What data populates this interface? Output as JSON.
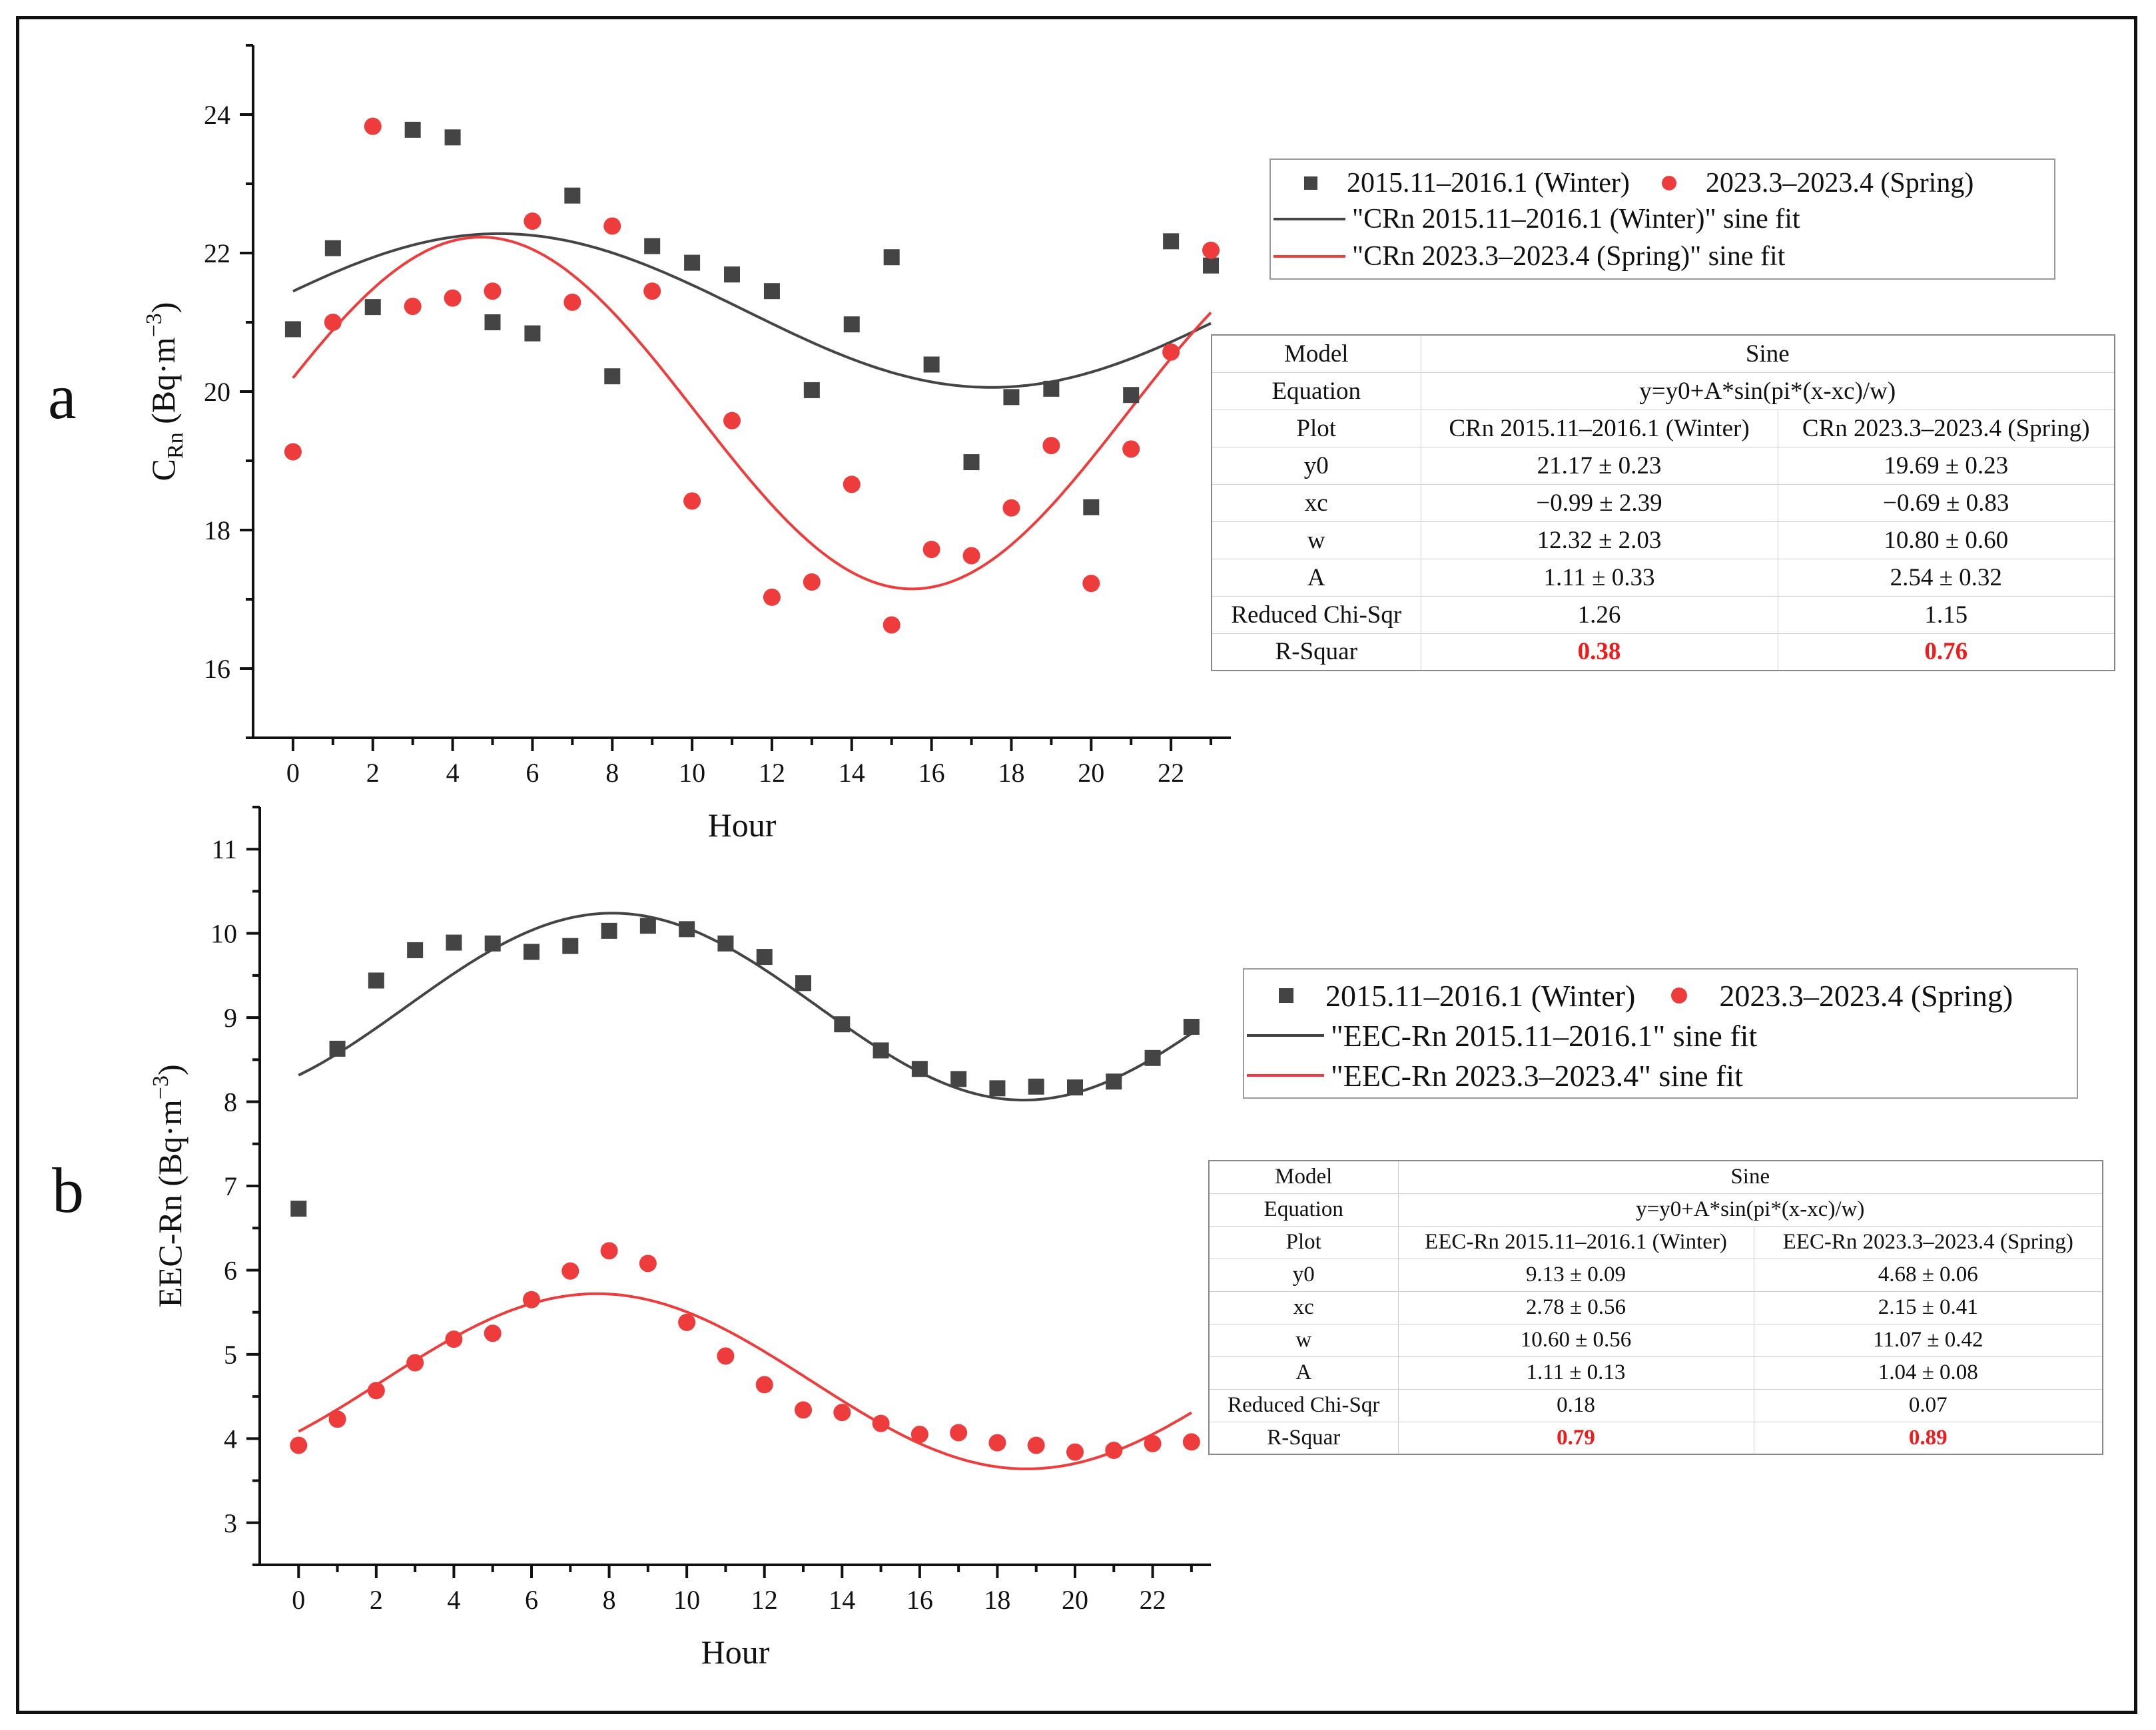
{
  "panels": [
    {
      "letter": "a",
      "xlabel": "Hour",
      "ylabel_main": "C",
      "ylabel_sub": "Rn",
      "ylabel_unit": " (Bq·m",
      "ylabel_exp": "−3",
      "ylabel_close": ")",
      "legend": {
        "winter_label": "2015.11–2016.1 (Winter)",
        "spring_label": "2023.3–2023.4 (Spring)",
        "winter_fit_label": "\"CRn 2015.11–2016.1 (Winter)\" sine fit",
        "spring_fit_label": "\"CRn 2023.3–2023.4 (Spring)\" sine fit"
      },
      "table": {
        "model_label": "Model",
        "model_value": "Sine",
        "equation_label": "Equation",
        "equation_value": "y=y0+A*sin(pi*(x-xc)/w)",
        "plot_label": "Plot",
        "plot_winter": "CRn 2015.11–2016.1 (Winter)",
        "plot_spring": "CRn 2023.3–2023.4 (Spring)",
        "rows": [
          {
            "label": "y0",
            "winter": "21.17 ± 0.23",
            "spring": "19.69 ± 0.23"
          },
          {
            "label": "xc",
            "winter": "−0.99 ± 2.39",
            "spring": "−0.69 ± 0.83"
          },
          {
            "label": "w",
            "winter": "12.32 ± 2.03",
            "spring": "10.80 ± 0.60"
          },
          {
            "label": "A",
            "winter": "1.11 ± 0.33",
            "spring": "2.54 ± 0.32"
          },
          {
            "label": "Reduced Chi-Sqr",
            "winter": "1.26",
            "spring": "1.15"
          }
        ],
        "r2_label": "R-Squar",
        "r2_winter": "0.38",
        "r2_spring": "0.76"
      }
    },
    {
      "letter": "b",
      "xlabel": "Hour",
      "ylabel_main": "EEC-Rn",
      "ylabel_sub": "",
      "ylabel_unit": " (Bq·m",
      "ylabel_exp": "−3",
      "ylabel_close": ")",
      "legend": {
        "winter_label": "2015.11–2016.1 (Winter)",
        "spring_label": "2023.3–2023.4 (Spring)",
        "winter_fit_label": "\"EEC-Rn 2015.11–2016.1\" sine fit",
        "spring_fit_label": "\"EEC-Rn 2023.3–2023.4\" sine fit"
      },
      "table": {
        "model_label": "Model",
        "model_value": "Sine",
        "equation_label": "Equation",
        "equation_value": "y=y0+A*sin(pi*(x-xc)/w)",
        "plot_label": "Plot",
        "plot_winter": "EEC-Rn 2015.11–2016.1 (Winter)",
        "plot_spring": "EEC-Rn 2023.3–2023.4 (Spring)",
        "rows": [
          {
            "label": "y0",
            "winter": "9.13 ± 0.09",
            "spring": "4.68 ± 0.06"
          },
          {
            "label": "xc",
            "winter": "2.78 ± 0.56",
            "spring": "2.15 ± 0.41"
          },
          {
            "label": "w",
            "winter": "10.60 ± 0.56",
            "spring": "11.07 ± 0.42"
          },
          {
            "label": "A",
            "winter": "1.11 ± 0.13",
            "spring": "1.04 ± 0.08"
          },
          {
            "label": "Reduced Chi-Sqr",
            "winter": "0.18",
            "spring": "0.07"
          }
        ],
        "r2_label": "R-Squar",
        "r2_winter": "0.79",
        "r2_spring": "0.89"
      }
    }
  ],
  "chart_data": [
    {
      "type": "scatter",
      "title": "",
      "xlabel": "Hour",
      "ylabel": "CRn (Bq·m−3)",
      "xlim": [
        -1,
        23.5
      ],
      "ylim": [
        15,
        25
      ],
      "xticks": [
        0,
        2,
        4,
        6,
        8,
        10,
        12,
        14,
        16,
        18,
        20,
        22
      ],
      "yticks": [
        16,
        18,
        20,
        22,
        24
      ],
      "series": [
        {
          "name": "2015.11–2016.1 (Winter)",
          "marker": "square",
          "color": "#444444",
          "x": [
            0,
            1,
            2,
            3,
            4,
            5,
            6,
            7,
            8,
            9,
            10,
            11,
            12,
            13,
            14,
            15,
            16,
            17,
            18,
            19,
            20,
            21,
            22,
            23
          ],
          "values": [
            20.9,
            22.07,
            21.22,
            23.78,
            23.67,
            21.0,
            20.84,
            22.83,
            20.22,
            22.1,
            21.86,
            21.69,
            21.45,
            20.02,
            20.97,
            21.94,
            20.39,
            18.98,
            19.92,
            20.04,
            18.33,
            19.95,
            22.17,
            21.82
          ]
        },
        {
          "name": "2023.3–2023.4 (Spring)",
          "marker": "circle",
          "color": "#ee3b3b",
          "x": [
            0,
            1,
            2,
            3,
            4,
            5,
            6,
            7,
            8,
            9,
            10,
            11,
            12,
            13,
            14,
            15,
            16,
            17,
            18,
            19,
            20,
            21,
            22,
            23
          ],
          "values": [
            19.13,
            21.0,
            23.83,
            21.23,
            21.35,
            21.45,
            22.46,
            21.29,
            22.39,
            21.45,
            18.42,
            19.58,
            17.03,
            17.25,
            18.66,
            16.63,
            17.72,
            17.63,
            18.32,
            19.22,
            17.23,
            19.17,
            20.57,
            22.04
          ]
        }
      ],
      "fits": [
        {
          "name": "\"CRn 2015.11–2016.1 (Winter)\" sine fit",
          "color": "#444444",
          "y0": 21.17,
          "xc": -0.99,
          "w": 12.32,
          "A": 1.11
        },
        {
          "name": "\"CRn 2023.3–2023.4 (Spring)\" sine fit",
          "color": "#ee3b3b",
          "y0": 19.69,
          "xc": -0.69,
          "w": 10.8,
          "A": 2.54
        }
      ],
      "legend_position": "top-right"
    },
    {
      "type": "scatter",
      "title": "",
      "xlabel": "Hour",
      "ylabel": "EEC-Rn (Bq·m−3)",
      "xlim": [
        -1,
        23.5
      ],
      "ylim": [
        2.5,
        11.5
      ],
      "xticks": [
        0,
        2,
        4,
        6,
        8,
        10,
        12,
        14,
        16,
        18,
        20,
        22
      ],
      "yticks": [
        3,
        4,
        5,
        6,
        7,
        8,
        9,
        10,
        11
      ],
      "series": [
        {
          "name": "2015.11–2016.1 (Winter)",
          "marker": "square",
          "color": "#444444",
          "x": [
            0,
            1,
            2,
            3,
            4,
            5,
            6,
            7,
            8,
            9,
            10,
            11,
            12,
            13,
            14,
            15,
            16,
            17,
            18,
            19,
            20,
            21,
            22,
            23
          ],
          "values": [
            6.73,
            8.63,
            9.44,
            9.8,
            9.89,
            9.88,
            9.78,
            9.85,
            10.03,
            10.09,
            10.05,
            9.88,
            9.72,
            9.41,
            8.92,
            8.61,
            8.39,
            8.27,
            8.16,
            8.18,
            8.17,
            8.24,
            8.52,
            8.89
          ]
        },
        {
          "name": "2023.3–2023.4 (Spring)",
          "marker": "circle",
          "color": "#ee3b3b",
          "x": [
            0,
            1,
            2,
            3,
            4,
            5,
            6,
            7,
            8,
            9,
            10,
            11,
            12,
            13,
            14,
            15,
            16,
            17,
            18,
            19,
            20,
            21,
            22,
            23
          ],
          "values": [
            3.92,
            4.23,
            4.57,
            4.9,
            5.18,
            5.25,
            5.65,
            5.99,
            6.23,
            6.08,
            5.38,
            4.98,
            4.64,
            4.34,
            4.31,
            4.18,
            4.05,
            4.07,
            3.95,
            3.92,
            3.84,
            3.86,
            3.94,
            3.96
          ]
        }
      ],
      "fits": [
        {
          "name": "\"EEC-Rn 2015.11–2016.1\" sine fit",
          "color": "#444444",
          "y0": 9.13,
          "xc": 2.78,
          "w": 10.6,
          "A": 1.11
        },
        {
          "name": "\"EEC-Rn 2023.3–2023.4\" sine fit",
          "color": "#ee3b3b",
          "y0": 4.68,
          "xc": 2.15,
          "w": 11.07,
          "A": 1.04
        }
      ],
      "legend_position": "top-right"
    }
  ]
}
